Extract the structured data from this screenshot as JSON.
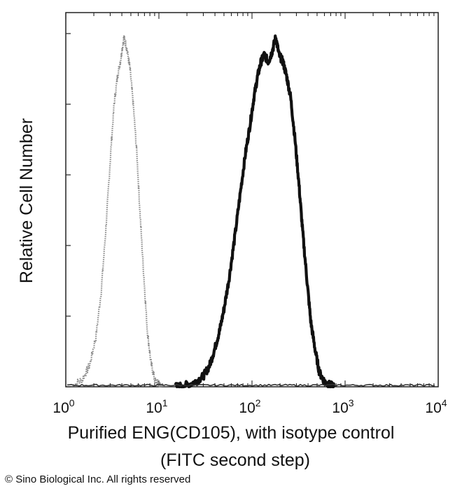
{
  "chart_data": {
    "type": "area",
    "x_scale": "log",
    "xlim": [
      1,
      10000
    ],
    "ylim": [
      0,
      100
    ],
    "x_ticks": [
      {
        "value": 1,
        "base": "10",
        "exp": "0"
      },
      {
        "value": 10,
        "base": "10",
        "exp": "1"
      },
      {
        "value": 100,
        "base": "10",
        "exp": "2"
      },
      {
        "value": 1000,
        "base": "10",
        "exp": "3"
      },
      {
        "value": 10000,
        "base": "10",
        "exp": "4"
      }
    ],
    "xlabel_line1": "Purified ENG(CD105), with isotype control",
    "xlabel_line2": "(FITC second step)",
    "ylabel": "Relative Cell Number",
    "grid": false,
    "series": [
      {
        "style": "dotted-gray",
        "color": "#8a8a8a",
        "x": [
          1.2,
          1.5,
          1.8,
          2.1,
          2.4,
          2.7,
          3.0,
          3.3,
          3.6,
          3.9,
          4.2,
          4.5,
          4.9,
          5.3,
          5.8,
          6.3,
          6.9,
          7.5,
          8.2,
          9.0,
          10.0,
          11.0
        ],
        "y": [
          0.5,
          2,
          6,
          14,
          27,
          45,
          64,
          80,
          88,
          93,
          99,
          96,
          90,
          80,
          66,
          48,
          31,
          16,
          7,
          2,
          0.5,
          0
        ]
      },
      {
        "style": "solid-black",
        "color": "#111111",
        "x": [
          15,
          20,
          25,
          30,
          35,
          40,
          45,
          50,
          57,
          65,
          75,
          85,
          95,
          105,
          115,
          125,
          135,
          150,
          165,
          180,
          195,
          215,
          235,
          260,
          290,
          320,
          350,
          390,
          430,
          480,
          530,
          600,
          680,
          760
        ],
        "y": [
          0,
          0.5,
          1.5,
          3,
          6,
          11,
          16,
          22,
          31,
          42,
          55,
          66,
          74,
          82,
          88,
          92,
          94,
          92,
          95,
          99,
          94,
          92,
          88,
          82,
          70,
          57,
          44,
          30,
          18,
          10,
          4,
          1.5,
          0.5,
          0
        ]
      }
    ]
  },
  "copyright": "© Sino Biological Inc. All rights reserved"
}
